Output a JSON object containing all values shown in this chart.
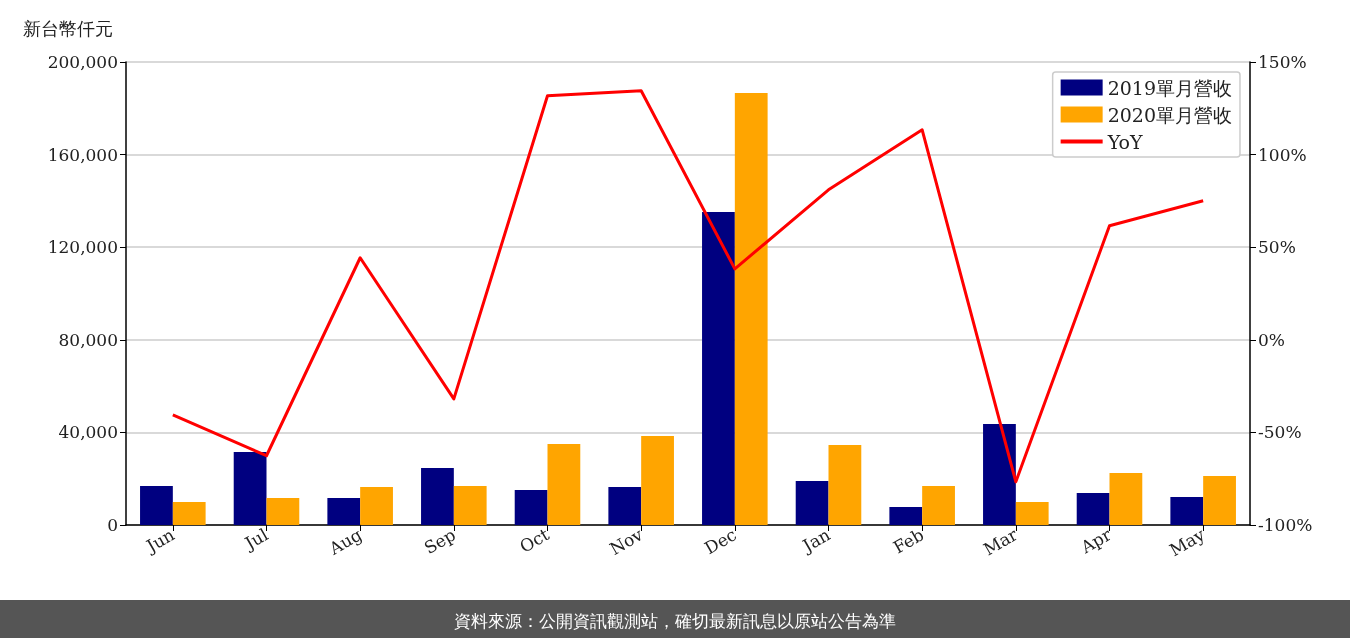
{
  "chart_data": {
    "type": "bar",
    "ylabel": "新台幣仟元",
    "categories": [
      "Jun",
      "Jul",
      "Aug",
      "Sep",
      "Oct",
      "Nov",
      "Dec",
      "Jan",
      "Feb",
      "Mar",
      "Apr",
      "May"
    ],
    "series": [
      {
        "name": "2019單月營收",
        "color": "#000080",
        "values": [
          16800,
          31500,
          11700,
          24600,
          15100,
          16400,
          135200,
          19000,
          7800,
          43600,
          13800,
          12100
        ]
      },
      {
        "name": "2020單月營收",
        "color": "#ffa500",
        "values": [
          9900,
          11700,
          16400,
          16800,
          35000,
          38400,
          186600,
          34600,
          16800,
          9900,
          22500,
          21200
        ]
      },
      {
        "name": "YoY",
        "type": "line",
        "axis": "y2",
        "color": "#ff0000",
        "values": [
          -40.5,
          -62.6,
          44.3,
          -31.9,
          131.8,
          134.5,
          38.3,
          81,
          113.4,
          -76.7,
          61.6,
          75.1
        ]
      }
    ],
    "ylim": [
      0,
      200000
    ],
    "yticks": [
      {
        "value": 0,
        "label": "0"
      },
      {
        "value": 40000,
        "label": "40,000"
      },
      {
        "value": 80000,
        "label": "80,000"
      },
      {
        "value": 120000,
        "label": "120,000"
      },
      {
        "value": 160000,
        "label": "160,000"
      },
      {
        "value": 200000,
        "label": "200,000"
      }
    ],
    "y2lim": [
      -100,
      150
    ],
    "y2ticks": [
      {
        "value": -100,
        "label": "-100%"
      },
      {
        "value": -50,
        "label": "-50%"
      },
      {
        "value": 0,
        "label": "0%"
      },
      {
        "value": 50,
        "label": "50%"
      },
      {
        "value": 100,
        "label": "100%"
      },
      {
        "value": 150,
        "label": "150%"
      }
    ],
    "grid": "y",
    "legend": "top right",
    "marker": "none",
    "line_style": "solid",
    "annotations": [
      "資料來源：公開資訊觀測站，確切最新訊息以原站公告為準"
    ]
  }
}
